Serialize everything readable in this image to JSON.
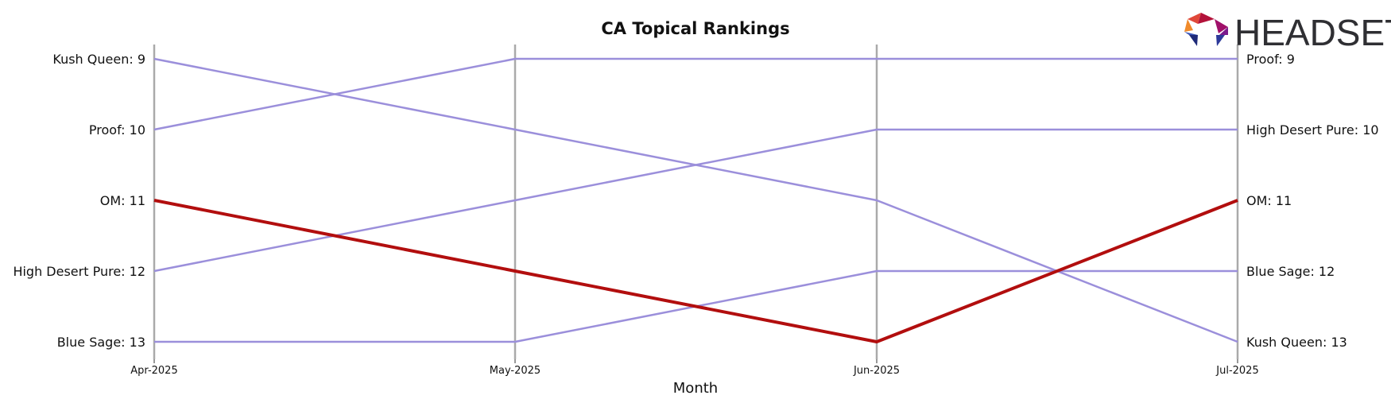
{
  "chart_data": {
    "type": "line",
    "title": "CA Topical Rankings",
    "xlabel": "Month",
    "ylabel": "",
    "categories": [
      "Apr-2025",
      "May-2025",
      "Jun-2025",
      "Jul-2025"
    ],
    "ylim": [
      9,
      13
    ],
    "y_inverted": true,
    "grid": "vertical lines at each month",
    "series": [
      {
        "name": "Kush Queen",
        "values": [
          9,
          10,
          11,
          13
        ],
        "color": "#9b8fdb",
        "highlight": false
      },
      {
        "name": "Proof",
        "values": [
          10,
          9,
          9,
          9
        ],
        "color": "#9b8fdb",
        "highlight": false
      },
      {
        "name": "OM",
        "values": [
          11,
          12,
          13,
          11
        ],
        "color": "#b20e0e",
        "highlight": true
      },
      {
        "name": "High Desert Pure",
        "values": [
          12,
          11,
          10,
          10
        ],
        "color": "#9b8fdb",
        "highlight": false
      },
      {
        "name": "Blue Sage",
        "values": [
          13,
          13,
          12,
          12
        ],
        "color": "#9b8fdb",
        "highlight": false
      }
    ]
  },
  "logo": {
    "text": "HEADSET"
  },
  "colors": {
    "highlight": "#b20e0e",
    "series": "#9b8fdb",
    "gridline": "#aaaaaa",
    "text": "#111111"
  }
}
